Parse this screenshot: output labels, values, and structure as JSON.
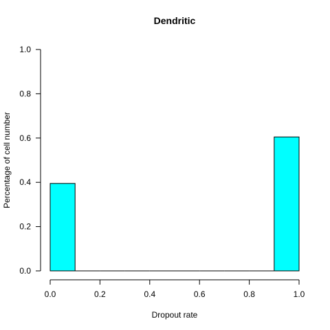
{
  "chart_data": {
    "type": "bar",
    "title": "Dendritic",
    "xlabel": "Dropout rate",
    "ylabel": "Percentage of cell number",
    "xlim": [
      0,
      1
    ],
    "ylim": [
      0,
      1
    ],
    "x_ticks": [
      "0.0",
      "0.2",
      "0.4",
      "0.6",
      "0.8",
      "1.0"
    ],
    "y_ticks": [
      "0.0",
      "0.2",
      "0.4",
      "0.6",
      "0.8",
      "1.0"
    ],
    "bins": [
      {
        "x0": 0.0,
        "x1": 0.1,
        "value": 0.395
      },
      {
        "x0": 0.1,
        "x1": 0.2,
        "value": 0
      },
      {
        "x0": 0.2,
        "x1": 0.3,
        "value": 0
      },
      {
        "x0": 0.3,
        "x1": 0.4,
        "value": 0
      },
      {
        "x0": 0.4,
        "x1": 0.5,
        "value": 0
      },
      {
        "x0": 0.5,
        "x1": 0.6,
        "value": 0
      },
      {
        "x0": 0.6,
        "x1": 0.7,
        "value": 0
      },
      {
        "x0": 0.7,
        "x1": 0.8,
        "value": 0
      },
      {
        "x0": 0.8,
        "x1": 0.9,
        "value": 0
      },
      {
        "x0": 0.9,
        "x1": 1.0,
        "value": 0.605
      }
    ],
    "bar_color": "#00FFFF",
    "grid": false
  }
}
